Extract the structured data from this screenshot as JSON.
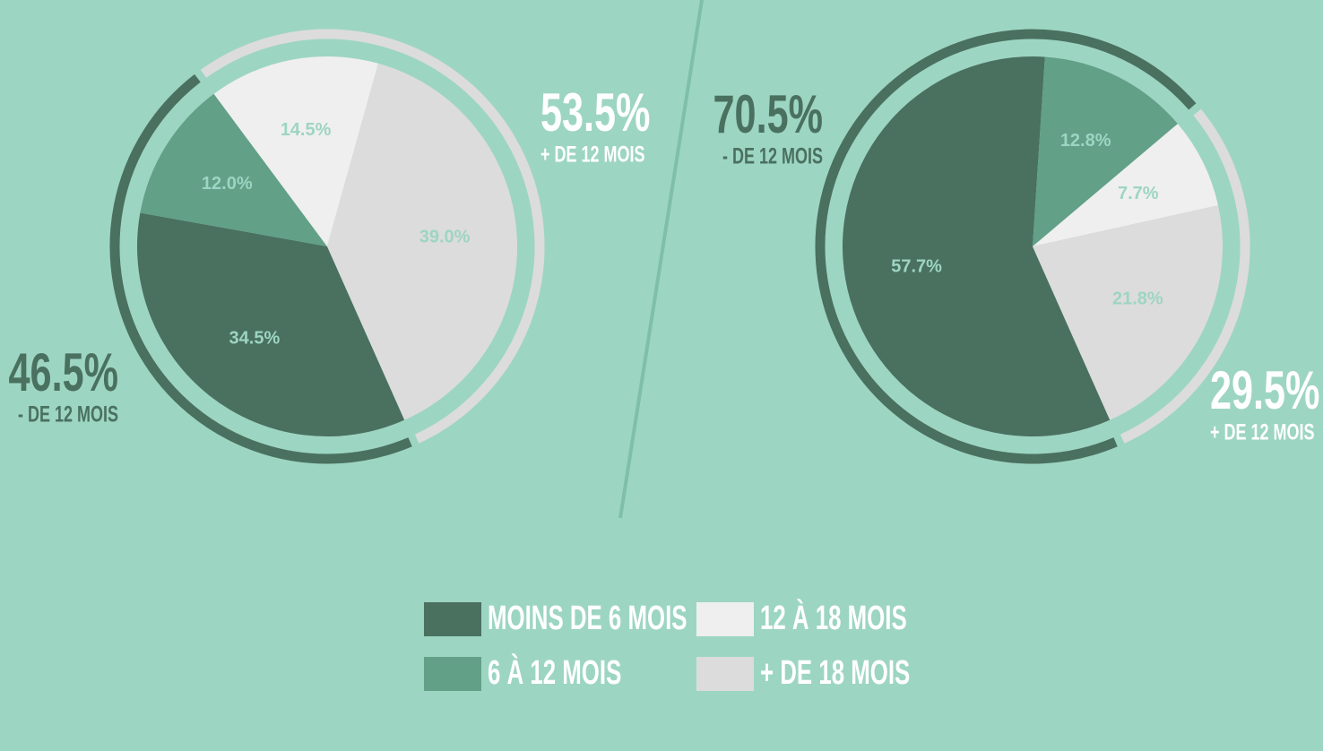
{
  "chart_data": [
    {
      "type": "pie",
      "values": [
        34.5,
        12.0,
        14.5,
        39.0
      ],
      "value_labels": [
        "34.5%",
        "12.0%",
        "14.5%",
        "39.0%"
      ],
      "groups": [
        {
          "value": 46.5,
          "value_label": "46.5%",
          "name": "- DE 12 MOIS",
          "color": "#4a7060"
        },
        {
          "value": 53.5,
          "value_label": "53.5%",
          "name": "+ DE 12 MOIS",
          "color": "#dcdcdc"
        }
      ]
    },
    {
      "type": "pie",
      "values": [
        57.7,
        12.8,
        7.7,
        21.8
      ],
      "value_labels": [
        "57.7%",
        "12.8%",
        "7.7%",
        "21.8%"
      ],
      "groups": [
        {
          "value": 70.5,
          "value_label": "70.5%",
          "name": "- DE 12 MOIS",
          "color": "#4a7060"
        },
        {
          "value": 29.5,
          "value_label": "29.5%",
          "name": "+ DE 12 MOIS",
          "color": "#dcdcdc"
        }
      ]
    }
  ],
  "legend": {
    "categories": [
      "MOINS DE 6 MOIS",
      "6 À 12 MOIS",
      "12 À 18 MOIS",
      "+ DE 18 MOIS"
    ],
    "colors": [
      "#4a7060",
      "#62a088",
      "#efefef",
      "#dcdcdc"
    ]
  }
}
